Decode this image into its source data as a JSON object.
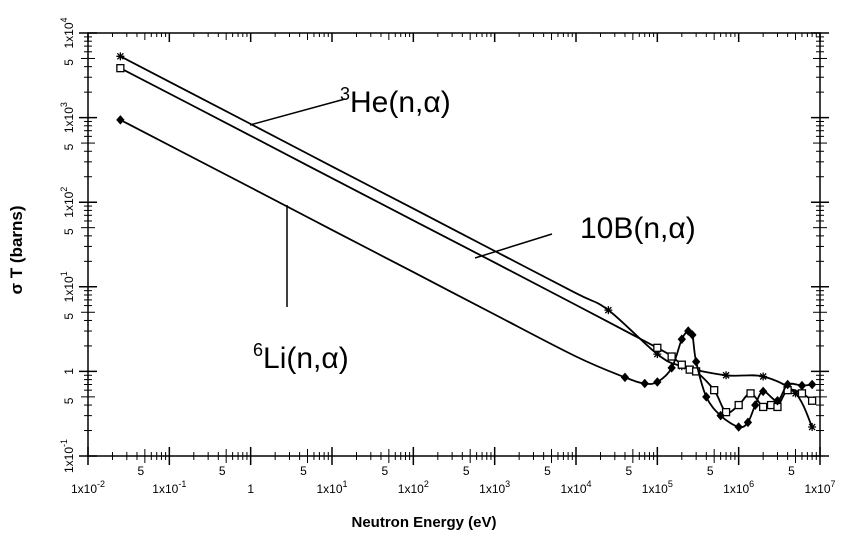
{
  "chart_data": {
    "type": "line",
    "xlabel": "Neutron Energy (eV)",
    "ylabel": "σ T  (barns)",
    "xscale": "log",
    "yscale": "log",
    "xlim": [
      0.01,
      10000000
    ],
    "ylim": [
      0.1,
      10000
    ],
    "grid": false,
    "x_tick_labels": [
      {
        "base": "1x10",
        "exp": "-2"
      },
      {
        "base": "1x10",
        "exp": "-1"
      },
      {
        "base": "1",
        "exp": ""
      },
      {
        "base": "1x10",
        "exp": "1"
      },
      {
        "base": "1x10",
        "exp": "2"
      },
      {
        "base": "1x10",
        "exp": "3"
      },
      {
        "base": "1x10",
        "exp": "4"
      },
      {
        "base": "1x10",
        "exp": "5"
      },
      {
        "base": "1x10",
        "exp": "6"
      },
      {
        "base": "1x10",
        "exp": "7"
      }
    ],
    "y_tick_labels": [
      {
        "base": "1x10",
        "exp": "-1"
      },
      {
        "base": "1",
        "exp": ""
      },
      {
        "base": "1x10",
        "exp": "1"
      },
      {
        "base": "1x10",
        "exp": "2"
      },
      {
        "base": "1x10",
        "exp": "3"
      },
      {
        "base": "1x10",
        "exp": "4"
      }
    ],
    "five_label": "5",
    "annotations": [
      {
        "sup": "3",
        "text": "He(n,α)"
      },
      {
        "sup": "",
        "text": "10B(n,α)"
      },
      {
        "sup": "6",
        "text": "Li(n,α)"
      }
    ],
    "series": [
      {
        "marker": "asterisk",
        "x": [
          0.025,
          1,
          10,
          100,
          1000,
          10000,
          25000,
          100000,
          200000,
          700000,
          2000000,
          5000000,
          8000000
        ],
        "y": [
          5300,
          840,
          265,
          84,
          26.5,
          8.4,
          5.3,
          1.6,
          1.15,
          0.9,
          0.87,
          0.55,
          0.22
        ]
      },
      {
        "marker": "square",
        "x": [
          0.025,
          1,
          10,
          100,
          1000,
          10000,
          100000,
          150000,
          200000,
          250000,
          300000,
          500000,
          700000,
          1000000,
          1400000,
          2000000,
          2500000,
          3000000,
          4000000,
          6000000,
          8000000
        ],
        "y": [
          3840,
          610,
          192,
          61,
          19.3,
          6.1,
          1.9,
          1.5,
          1.2,
          1.05,
          1.0,
          0.6,
          0.33,
          0.4,
          0.55,
          0.38,
          0.4,
          0.38,
          0.6,
          0.55,
          0.45
        ]
      },
      {
        "marker": "diamond",
        "x": [
          0.025,
          1,
          10,
          100,
          1000,
          10000,
          40000,
          70000,
          100000,
          150000,
          200000,
          240000,
          270000,
          300000,
          400000,
          600000,
          1000000,
          1300000,
          1600000,
          2000000,
          3000000,
          4000000,
          6000000,
          8000000
        ],
        "y": [
          940,
          149,
          47,
          14.9,
          4.7,
          1.5,
          0.85,
          0.72,
          0.75,
          1.1,
          2.4,
          3.0,
          2.7,
          1.3,
          0.5,
          0.3,
          0.22,
          0.25,
          0.4,
          0.58,
          0.45,
          0.7,
          0.68,
          0.7
        ]
      }
    ]
  }
}
